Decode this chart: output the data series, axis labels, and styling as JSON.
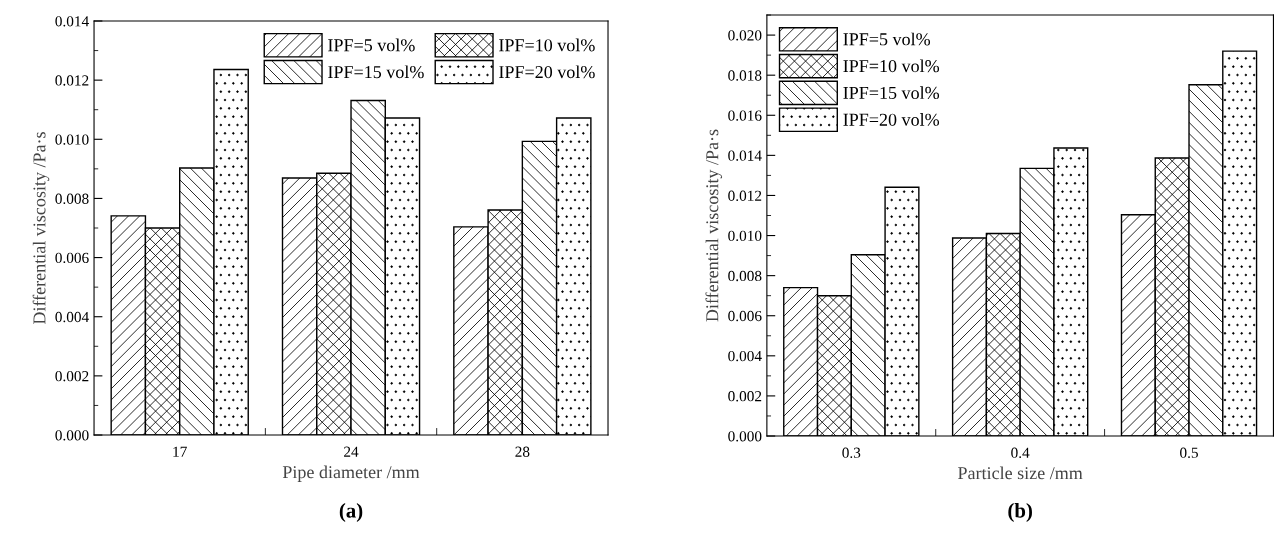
{
  "chart_data": [
    {
      "type": "bar",
      "xlabel": "Pipe diameter /mm",
      "ylabel": "Differential viscosity /Pa·s",
      "categories": [
        "17",
        "24",
        "28"
      ],
      "series": [
        {
          "name": "IPF=5 vol%",
          "color": "#000000",
          "values": [
            0.00741,
            0.00869,
            0.00704
          ]
        },
        {
          "name": "IPF=10 vol%",
          "color": "#000000",
          "values": [
            0.007,
            0.00885,
            0.00761
          ]
        },
        {
          "name": "IPF=15 vol%",
          "color": "#000000",
          "values": [
            0.00903,
            0.01131,
            0.00993
          ]
        },
        {
          "name": "IPF=20 vol%",
          "color": "#000000",
          "values": [
            0.01236,
            0.01072,
            0.01072
          ]
        }
      ],
      "ylim": [
        0,
        0.014
      ],
      "yticks": [
        {
          "value": 0,
          "label": "0.000"
        },
        {
          "value": 0.002,
          "label": "0.002"
        },
        {
          "value": 0.004,
          "label": "0.004"
        },
        {
          "value": 0.006,
          "label": "0.006"
        },
        {
          "value": 0.008,
          "label": "0.008"
        },
        {
          "value": 0.01,
          "label": "0.010"
        },
        {
          "value": 0.012,
          "label": "0.012"
        },
        {
          "value": 0.014,
          "label": "0.014"
        }
      ],
      "legend": "top right",
      "grid": false,
      "annotations": [
        "(a)"
      ]
    },
    {
      "type": "bar",
      "xlabel": "Particle size /mm",
      "ylabel": "Differential viscosity /Pa·s",
      "categories": [
        "0.3",
        "0.4",
        "0.5"
      ],
      "series": [
        {
          "name": "IPF=5 vol%",
          "color": "#000000",
          "values": [
            0.0074,
            0.00988,
            0.01104
          ]
        },
        {
          "name": "IPF=10 vol%",
          "color": "#000000",
          "values": [
            0.007,
            0.0101,
            0.01387
          ]
        },
        {
          "name": "IPF=15 vol%",
          "color": "#000000",
          "values": [
            0.00904,
            0.01335,
            0.01752
          ]
        },
        {
          "name": "IPF=20 vol%",
          "color": "#000000",
          "values": [
            0.01241,
            0.01437,
            0.0192
          ]
        }
      ],
      "ylim": [
        0,
        0.021
      ],
      "yticks": [
        {
          "value": 0,
          "label": "0.000"
        },
        {
          "value": 0.002,
          "label": "0.002"
        },
        {
          "value": 0.004,
          "label": "0.004"
        },
        {
          "value": 0.006,
          "label": "0.006"
        },
        {
          "value": 0.008,
          "label": "0.008"
        },
        {
          "value": 0.01,
          "label": "0.010"
        },
        {
          "value": 0.012,
          "label": "0.012"
        },
        {
          "value": 0.014,
          "label": "0.014"
        },
        {
          "value": 0.016,
          "label": "0.016"
        },
        {
          "value": 0.018,
          "label": "0.018"
        },
        {
          "value": 0.02,
          "label": "0.020"
        }
      ],
      "legend": "top left",
      "grid": false,
      "annotations": [
        "(b)"
      ]
    }
  ]
}
